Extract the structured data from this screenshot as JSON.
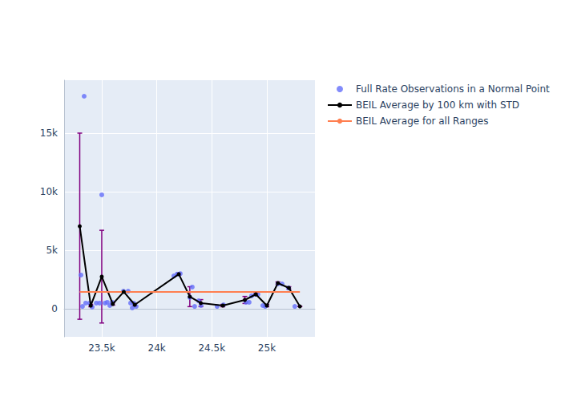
{
  "chart_data": {
    "type": "scatter",
    "xlim": [
      23158,
      25437
    ],
    "ylim": [
      -2400,
      19520
    ],
    "xticks": [
      {
        "value": 23500,
        "label": "23.5k"
      },
      {
        "value": 24000,
        "label": "24k"
      },
      {
        "value": 24500,
        "label": "24.5k"
      },
      {
        "value": 25000,
        "label": "25k"
      }
    ],
    "yticks": [
      0,
      {
        "value": 5000,
        "label": "5k"
      },
      {
        "value": 10000,
        "label": "10k"
      },
      {
        "value": 15000,
        "label": "15k"
      }
    ],
    "grid": true,
    "legend": "top-right",
    "series": [
      {
        "name": "Full Rate Observations in a Normal Point",
        "type": "scatter",
        "marker": "circle",
        "color": "#636efa",
        "x": [
          23311,
          23340,
          23325,
          23354,
          23413,
          23390,
          23450,
          23480,
          23500,
          23530,
          23550,
          23573,
          23595,
          23697,
          23740,
          23762,
          23777,
          23790,
          23813,
          24155,
          24184,
          24213,
          24300,
          24322,
          24344,
          24380,
          24402,
          24548,
          24606,
          24810,
          24839,
          24861,
          24897,
          24919,
          24963,
          24985,
          25101,
          25138,
          25196,
          25254
        ],
        "values": [
          2877,
          18150,
          200,
          480,
          140,
          480,
          480,
          480,
          9730,
          480,
          550,
          270,
          550,
          1500,
          1500,
          480,
          70,
          480,
          200,
          2800,
          2950,
          3000,
          960,
          1850,
          200,
          680,
          270,
          200,
          340,
          550,
          550,
          1100,
          1230,
          1230,
          270,
          200,
          2120,
          2120,
          1780,
          200
        ]
      },
      {
        "name": "BEIL Average by 100 km with STD",
        "type": "line",
        "marker": "circle",
        "color": "#000000",
        "x": [
          23300,
          23400,
          23500,
          23600,
          23700,
          23800,
          24200,
          24300,
          24400,
          24600,
          24800,
          24900,
          25000,
          25100,
          25200,
          25300
        ],
        "values": [
          7050,
          270,
          2740,
          410,
          1440,
          340,
          2950,
          1030,
          480,
          270,
          750,
          1230,
          270,
          2190,
          1780,
          200
        ],
        "std": [
          7950,
          100,
          3960,
          100,
          0,
          100,
          100,
          850,
          300,
          100,
          300,
          100,
          100,
          100,
          100,
          0
        ]
      },
      {
        "name": "BEIL Average for all Ranges",
        "type": "line",
        "color": "#ff7f50",
        "x": [
          23300,
          25300
        ],
        "values": [
          1440,
          1440
        ]
      }
    ]
  }
}
